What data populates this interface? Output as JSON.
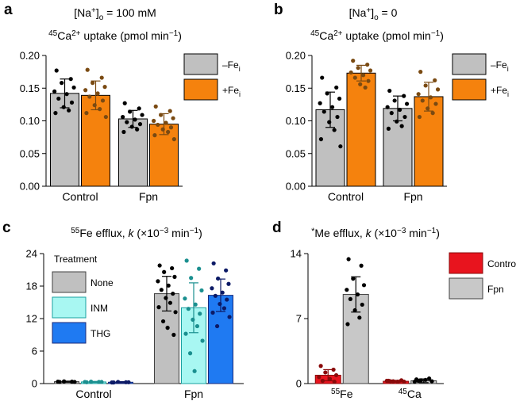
{
  "chart_data": [
    {
      "id": "a",
      "type": "bar",
      "panel_label": "a",
      "title_main": "[Na",
      "title_sup": "+",
      "title_mid": "]",
      "title_sub": "o",
      "title_end": " = 100 mM",
      "ytitle_sup": "45",
      "ytitle_main": "Ca",
      "ytitle_sup2": "2+",
      "ytitle_end": " uptake (pmol min",
      "ytitle_exp": "−1",
      "ytitle_close": ")",
      "categories": [
        "Control",
        "Fpn"
      ],
      "ylim": [
        0,
        0.2
      ],
      "yticks": [
        "0.00",
        "0.05",
        "0.10",
        "0.15",
        "0.20"
      ],
      "ytick_values": [
        0,
        0.05,
        0.1,
        0.15,
        0.2
      ],
      "legend_position": "top-right",
      "series": [
        {
          "name": "–Fe",
          "name_sub": "i",
          "color": "#c0c0c0",
          "dot_color": "#000000",
          "values": [
            0.142,
            0.103
          ],
          "sd": [
            0.022,
            0.013
          ],
          "points": [
            [
              0.177,
              0.164,
              0.158,
              0.151,
              0.145,
              0.141,
              0.134,
              0.128,
              0.121,
              0.116,
              0.112
            ],
            [
              0.127,
              0.119,
              0.114,
              0.109,
              0.106,
              0.102,
              0.098,
              0.095,
              0.091,
              0.087,
              0.083
            ]
          ]
        },
        {
          "name": "+Fe",
          "name_sub": "i",
          "color": "#f5820d",
          "dot_color": "#7a4a12",
          "values": [
            0.139,
            0.095
          ],
          "sd": [
            0.022,
            0.016
          ],
          "points": [
            [
              0.178,
              0.166,
              0.158,
              0.152,
              0.147,
              0.142,
              0.137,
              0.131,
              0.124,
              0.118,
              0.112,
              0.106
            ],
            [
              0.122,
              0.115,
              0.109,
              0.104,
              0.1,
              0.097,
              0.094,
              0.09,
              0.087,
              0.083,
              0.078,
              0.072
            ]
          ]
        }
      ]
    },
    {
      "id": "b",
      "type": "bar",
      "panel_label": "b",
      "title_main": "[Na",
      "title_sup": "+",
      "title_mid": "]",
      "title_sub": "o",
      "title_end": " = 0",
      "ytitle_sup": "45",
      "ytitle_main": "Ca",
      "ytitle_sup2": "2+",
      "ytitle_end": " uptake (pmol min",
      "ytitle_exp": "−1",
      "ytitle_close": ")",
      "categories": [
        "Control",
        "Fpn"
      ],
      "ylim": [
        0,
        0.2
      ],
      "yticks": [
        "0.00",
        "0.05",
        "0.10",
        "0.15",
        "0.20"
      ],
      "ytick_values": [
        0,
        0.05,
        0.1,
        0.15,
        0.2
      ],
      "legend_position": "top-right",
      "series": [
        {
          "name": "–Fe",
          "name_sub": "i",
          "color": "#c0c0c0",
          "dot_color": "#000000",
          "values": [
            0.117,
            0.119
          ],
          "sd": [
            0.027,
            0.019
          ],
          "points": [
            [
              0.166,
              0.151,
              0.142,
              0.134,
              0.127,
              0.121,
              0.114,
              0.106,
              0.098,
              0.086,
              0.072,
              0.061
            ],
            [
              0.146,
              0.138,
              0.131,
              0.126,
              0.121,
              0.117,
              0.112,
              0.106,
              0.099,
              0.092,
              0.088
            ]
          ]
        },
        {
          "name": "+Fe",
          "name_sub": "i",
          "color": "#f5820d",
          "dot_color": "#7a4a12",
          "values": [
            0.173,
            0.137
          ],
          "sd": [
            0.012,
            0.022
          ],
          "points": [
            [
              0.192,
              0.186,
              0.181,
              0.177,
              0.174,
              0.17,
              0.166,
              0.161,
              0.156,
              0.151
            ],
            [
              0.175,
              0.162,
              0.154,
              0.148,
              0.141,
              0.136,
              0.131,
              0.126,
              0.119,
              0.112,
              0.106
            ]
          ]
        }
      ]
    },
    {
      "id": "c",
      "type": "bar",
      "panel_label": "c",
      "title_sup": "55",
      "title_main": "Fe efflux, ",
      "title_k": "k",
      "title_end": " (×10",
      "title_exp": "−3",
      "title_close": " min",
      "title_exp2": "−1",
      "title_close2": ")",
      "categories": [
        "Control",
        "Fpn"
      ],
      "ylim": [
        0,
        24
      ],
      "yticks": [
        "0",
        "6",
        "12",
        "18",
        "24"
      ],
      "ytick_values": [
        0,
        6,
        12,
        18,
        24
      ],
      "legend_title": "Treatment",
      "legend_position": "top-left",
      "series": [
        {
          "name": "None",
          "color": "#c0c0c0",
          "stroke": "#404040",
          "dot_color": "#000000",
          "values": [
            0.35,
            16.6
          ],
          "sd": [
            0.1,
            3.2
          ],
          "points": [
            [
              0.3,
              0.35,
              0.4,
              0.3,
              0.35
            ],
            [
              21.8,
              21.3,
              20.6,
              19.7,
              18.9,
              18.1,
              17.3,
              16.6,
              15.8,
              14.9,
              14.1,
              13.2,
              11.5,
              10.3,
              9.0
            ]
          ]
        },
        {
          "name": "INM",
          "color": "#a8f7f2",
          "stroke": "#1aa0a0",
          "dot_color": "#1a8f8f",
          "values": [
            0.3,
            14.0
          ],
          "sd": [
            0.1,
            4.6
          ],
          "points": [
            [
              0.25,
              0.3,
              0.35,
              0.3,
              0.3
            ],
            [
              22.7,
              21.2,
              19.5,
              17.2,
              15.7,
              14.6,
              13.8,
              12.9,
              11.8,
              10.6,
              9.2,
              7.9,
              5.6,
              2.3
            ]
          ]
        },
        {
          "name": "THG",
          "color": "#1f7af2",
          "stroke": "#1a2a7a",
          "dot_color": "#0c1a66",
          "values": [
            0.25,
            16.3
          ],
          "sd": [
            0.1,
            3.0
          ],
          "points": [
            [
              0.2,
              0.25,
              0.3,
              0.25,
              0.2
            ],
            [
              22.2,
              20.9,
              19.4,
              18.4,
              17.6,
              16.8,
              16.2,
              15.5,
              14.7,
              13.9,
              13.1,
              12.3,
              10.6
            ]
          ]
        }
      ]
    },
    {
      "id": "d",
      "type": "bar",
      "panel_label": "d",
      "title_pre": "*",
      "title_main": "Me efflux, ",
      "title_k": "k",
      "title_end": " (×10",
      "title_exp": "−3",
      "title_close": " min",
      "title_exp2": "−1",
      "title_close2": ")",
      "categories_sup": [
        "55",
        "45"
      ],
      "categories": [
        "Fe",
        "Ca"
      ],
      "ylim": [
        0,
        14
      ],
      "yticks": [
        "0",
        "7",
        "14"
      ],
      "ytick_values": [
        0,
        7,
        14
      ],
      "legend_position": "top-right",
      "series": [
        {
          "name": "Control",
          "color": "#e8141e",
          "stroke": "#8a0a0a",
          "dot_color": "#8a0a0a",
          "values": [
            0.9,
            0.25
          ],
          "sd": [
            0.6,
            0.1
          ],
          "points": [
            [
              1.9,
              1.5,
              1.2,
              0.9,
              0.7,
              0.5,
              0.3,
              0.2
            ],
            [
              0.3,
              0.35,
              0.25,
              0.2,
              0.3,
              0.2,
              0.25
            ]
          ]
        },
        {
          "name": "Fpn",
          "color": "#c8c8c8",
          "stroke": "#404040",
          "dot_color": "#000000",
          "values": [
            9.6,
            0.3
          ],
          "sd": [
            1.9,
            0.2
          ],
          "points": [
            [
              13.4,
              12.7,
              11.3,
              10.6,
              10.1,
              9.6,
              9.1,
              8.5,
              7.9,
              7.1,
              6.4
            ],
            [
              0.45,
              0.55,
              0.35,
              0.25,
              0.2,
              0.4,
              0.3
            ]
          ]
        }
      ]
    }
  ]
}
